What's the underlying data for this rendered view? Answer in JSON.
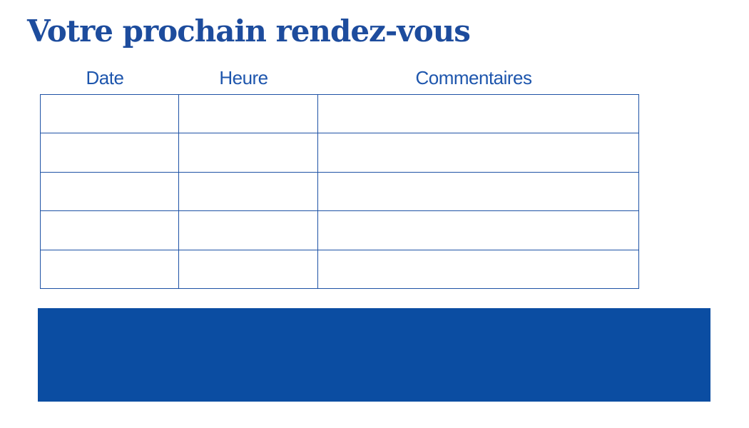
{
  "page": {
    "title": "Votre prochain rendez-vous"
  },
  "colors": {
    "title_text": "#1d4c9d",
    "header_text": "#1e56ad",
    "table_border": "#1e52a5",
    "footer_block": "#0b4da2",
    "background": "#ffffff"
  },
  "table": {
    "headers": [
      "Date",
      "Heure",
      "Commentaires"
    ],
    "row_count": 5,
    "rows": [
      [
        "",
        "",
        ""
      ],
      [
        "",
        "",
        ""
      ],
      [
        "",
        "",
        ""
      ],
      [
        "",
        "",
        ""
      ],
      [
        "",
        "",
        ""
      ]
    ]
  }
}
